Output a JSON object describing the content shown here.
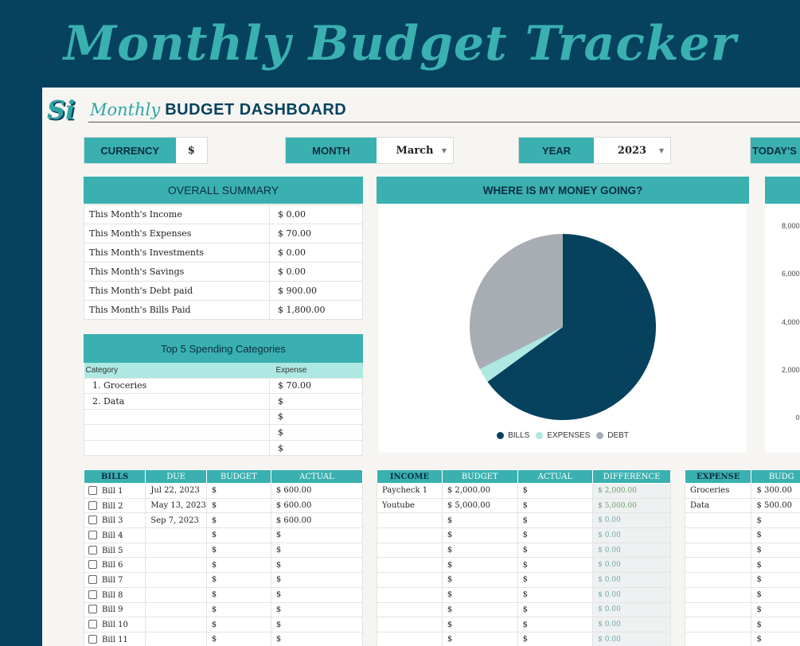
{
  "banner": {
    "title": "Monthly Budget Tracker"
  },
  "dashboard": {
    "logo_text": "Si",
    "monthly": "Monthly",
    "title": "BUDGET DASHBOARD"
  },
  "selectors": {
    "currency": {
      "label": "CURRENCY",
      "value": "$"
    },
    "month": {
      "label": "MONTH",
      "value": "March"
    },
    "year": {
      "label": "YEAR",
      "value": "2023"
    },
    "today": {
      "label": "TODAY'S"
    }
  },
  "summary": {
    "title": "OVERALL SUMMARY",
    "rows": [
      {
        "label": "This Month's Income",
        "value": "$ 0.00"
      },
      {
        "label": "This Month's Expenses",
        "value": "$ 70.00"
      },
      {
        "label": "This Month's Investments",
        "value": "$ 0.00"
      },
      {
        "label": "This Month's Savings",
        "value": "$ 0.00"
      },
      {
        "label": "This Month's Debt paid",
        "value": "$ 900.00"
      },
      {
        "label": "This Month's Bills Paid",
        "value": "$ 1,800.00"
      }
    ]
  },
  "top5": {
    "title": "Top 5 Spending Categories",
    "col_category": "Category",
    "col_expense": "Expense",
    "rows": [
      {
        "category": "1.  Groceries",
        "expense": "$ 70.00"
      },
      {
        "category": "2.  Data",
        "expense": "$"
      },
      {
        "category": "",
        "expense": "$"
      },
      {
        "category": "",
        "expense": "$"
      },
      {
        "category": "",
        "expense": "$"
      }
    ]
  },
  "chart": {
    "title": "WHERE IS MY MONEY GOING?",
    "colors": {
      "bills": "#06425e",
      "expenses": "#aee8e2",
      "debt": "#a7adb3"
    }
  },
  "chart_data": {
    "type": "pie",
    "title": "WHERE IS MY MONEY GOING?",
    "categories": [
      "BILLS",
      "EXPENSES",
      "DEBT"
    ],
    "values": [
      1800,
      70,
      900
    ],
    "legend": "bottom"
  },
  "right_chart": {
    "ticks": [
      "8,000.",
      "6,000.",
      "4,000.",
      "2,000.",
      "0."
    ]
  },
  "bills": {
    "headers": [
      "BILLS",
      "DUE",
      "BUDGET",
      "ACTUAL"
    ],
    "rows": [
      {
        "name": "Bill 1",
        "due": "Jul 22, 2023",
        "budget": "$",
        "actual": "$  600.00"
      },
      {
        "name": "Bill 2",
        "due": "May 13, 2023",
        "budget": "$",
        "actual": "$  600.00"
      },
      {
        "name": "Bill 3",
        "due": "Sep 7, 2023",
        "budget": "$",
        "actual": "$  600.00"
      },
      {
        "name": "Bill 4",
        "due": "",
        "budget": "$",
        "actual": "$"
      },
      {
        "name": "Bill 5",
        "due": "",
        "budget": "$",
        "actual": "$"
      },
      {
        "name": "Bill 6",
        "due": "",
        "budget": "$",
        "actual": "$"
      },
      {
        "name": "Bill 7",
        "due": "",
        "budget": "$",
        "actual": "$"
      },
      {
        "name": "Bill 8",
        "due": "",
        "budget": "$",
        "actual": "$"
      },
      {
        "name": "Bill 9",
        "due": "",
        "budget": "$",
        "actual": "$"
      },
      {
        "name": "Bill 10",
        "due": "",
        "budget": "$",
        "actual": "$"
      },
      {
        "name": "Bill 11",
        "due": "",
        "budget": "$",
        "actual": "$"
      }
    ]
  },
  "income": {
    "headers": [
      "INCOME",
      "BUDGET",
      "ACTUAL",
      "DIFFERENCE"
    ],
    "rows": [
      {
        "name": "Paycheck 1",
        "budget": "$  2,000.00",
        "actual": "$",
        "diff": "$  2,000.00"
      },
      {
        "name": "Youtube",
        "budget": "$  5,000.00",
        "actual": "$",
        "diff": "$  5,000.00"
      },
      {
        "name": "",
        "budget": "$",
        "actual": "$",
        "diff": "$  0.00"
      },
      {
        "name": "",
        "budget": "$",
        "actual": "$",
        "diff": "$  0.00"
      },
      {
        "name": "",
        "budget": "$",
        "actual": "$",
        "diff": "$  0.00"
      },
      {
        "name": "",
        "budget": "$",
        "actual": "$",
        "diff": "$  0.00"
      },
      {
        "name": "",
        "budget": "$",
        "actual": "$",
        "diff": "$  0.00"
      },
      {
        "name": "",
        "budget": "$",
        "actual": "$",
        "diff": "$  0.00"
      },
      {
        "name": "",
        "budget": "$",
        "actual": "$",
        "diff": "$  0.00"
      },
      {
        "name": "",
        "budget": "$",
        "actual": "$",
        "diff": "$  0.00"
      },
      {
        "name": "",
        "budget": "$",
        "actual": "$",
        "diff": "$  0.00"
      }
    ]
  },
  "expense": {
    "headers": [
      "EXPENSE",
      "BUDG"
    ],
    "rows": [
      {
        "name": "Groceries",
        "budget": "$  300.00"
      },
      {
        "name": "Data",
        "budget": "$  500.00"
      },
      {
        "name": "",
        "budget": "$"
      },
      {
        "name": "",
        "budget": "$"
      },
      {
        "name": "",
        "budget": "$"
      },
      {
        "name": "",
        "budget": "$"
      },
      {
        "name": "",
        "budget": "$"
      },
      {
        "name": "",
        "budget": "$"
      },
      {
        "name": "",
        "budget": "$"
      },
      {
        "name": "",
        "budget": "$"
      },
      {
        "name": "",
        "budget": "$"
      }
    ]
  }
}
